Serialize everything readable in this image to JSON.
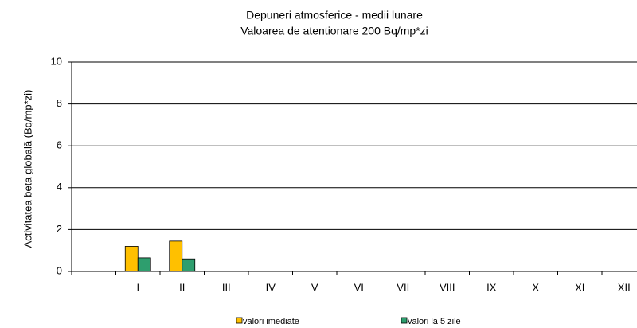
{
  "chart_data": {
    "type": "bar",
    "title": "Depuneri atmosferice - medii lunare",
    "subtitle": "Valoarea de atentionare 200 Bq/mp*zi",
    "y_label": "Activitatea beta globală (Bq/mp*zi)",
    "categories": [
      null,
      "I",
      "II",
      "III",
      "IV",
      "V",
      "VI",
      "VII",
      "VIII",
      "IX",
      "X",
      "XI",
      "XII"
    ],
    "series": [
      {
        "name": "valori imediate",
        "color": "#ffc000",
        "values": [
          null,
          1.2,
          1.45,
          null,
          null,
          null,
          null,
          null,
          null,
          null,
          null,
          null,
          null
        ]
      },
      {
        "name": "valori la 5 zile",
        "color": "#2e9e6e",
        "values": [
          null,
          0.65,
          0.6,
          null,
          null,
          null,
          null,
          null,
          null,
          null,
          null,
          null,
          null
        ]
      }
    ],
    "ylim": [
      0,
      10
    ],
    "yticks": [
      0,
      2,
      4,
      6,
      8,
      10
    ],
    "grid": true
  }
}
